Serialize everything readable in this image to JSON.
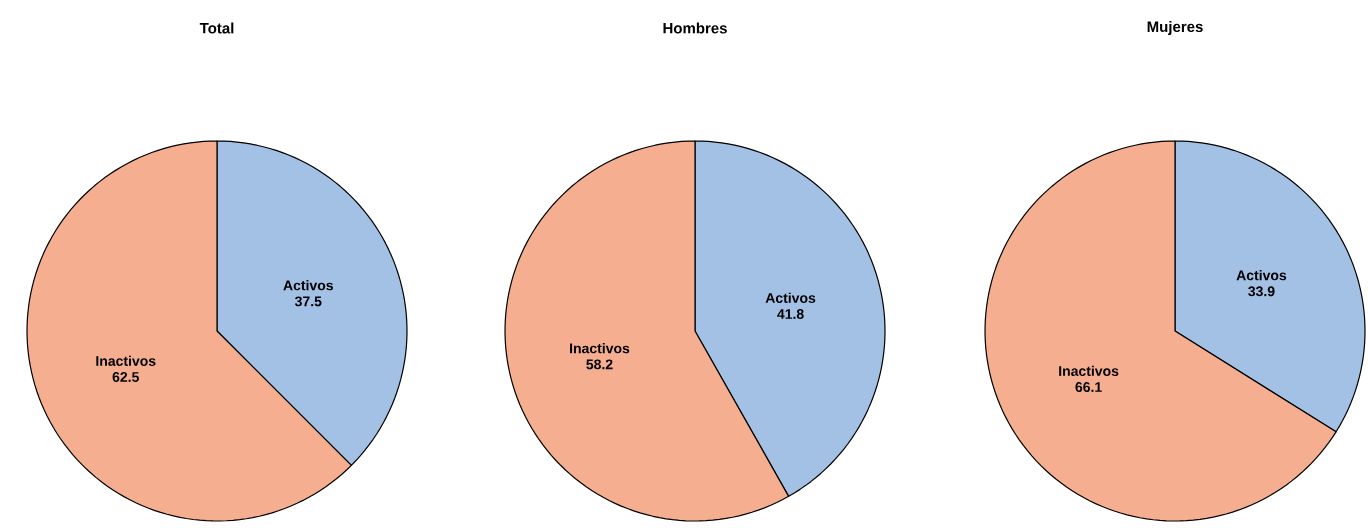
{
  "chart_data": [
    {
      "type": "pie",
      "title": "Total",
      "categories": [
        "Activos",
        "Inactivos"
      ],
      "values": [
        37.5,
        62.5
      ],
      "colors": [
        "#a3c0e5",
        "#f5ae8f"
      ],
      "data_labels": true
    },
    {
      "type": "pie",
      "title": "Hombres",
      "categories": [
        "Activos",
        "Inactivos"
      ],
      "values": [
        41.8,
        58.2
      ],
      "colors": [
        "#a3c0e5",
        "#f5ae8f"
      ],
      "data_labels": true
    },
    {
      "type": "pie",
      "title": "Mujeres",
      "categories": [
        "Activos",
        "Inactivos"
      ],
      "values": [
        33.9,
        66.1
      ],
      "colors": [
        "#a3c0e5",
        "#f5ae8f"
      ],
      "data_labels": true
    }
  ]
}
